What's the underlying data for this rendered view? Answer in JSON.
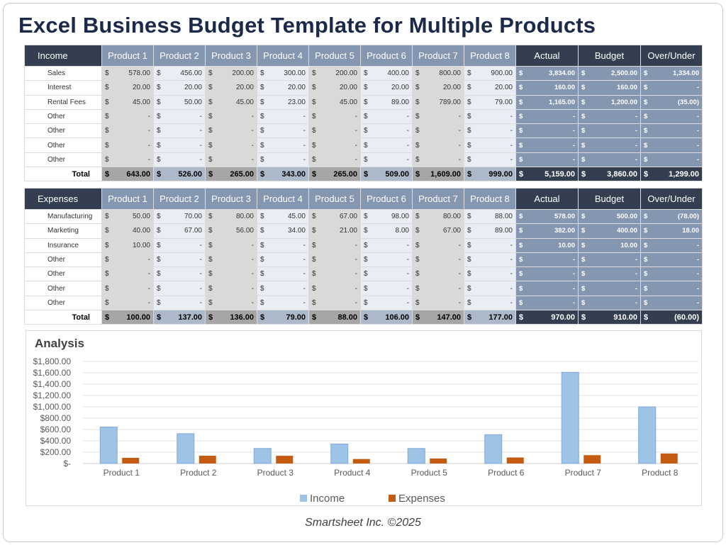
{
  "title": "Excel Business Budget Template for Multiple Products",
  "products": [
    "Product 1",
    "Product 2",
    "Product 3",
    "Product 4",
    "Product 5",
    "Product 6",
    "Product 7",
    "Product 8"
  ],
  "summary_headers": [
    "Actual",
    "Budget",
    "Over/Under"
  ],
  "currency": "$",
  "income": {
    "label": "Income",
    "rows": [
      {
        "label": "Sales",
        "values": [
          "578.00",
          "456.00",
          "200.00",
          "300.00",
          "200.00",
          "400.00",
          "800.00",
          "900.00"
        ],
        "summary": [
          "3,834.00",
          "2,500.00",
          "1,334.00"
        ]
      },
      {
        "label": "Interest",
        "values": [
          "20.00",
          "20.00",
          "20.00",
          "20.00",
          "20.00",
          "20.00",
          "20.00",
          "20.00"
        ],
        "summary": [
          "160.00",
          "160.00",
          "-"
        ]
      },
      {
        "label": "Rental Fees",
        "values": [
          "45.00",
          "50.00",
          "45.00",
          "23.00",
          "45.00",
          "89.00",
          "789.00",
          "79.00"
        ],
        "summary": [
          "1,165.00",
          "1,200.00",
          "(35.00)"
        ]
      },
      {
        "label": "Other",
        "values": [
          "-",
          "-",
          "-",
          "-",
          "-",
          "-",
          "-",
          "-"
        ],
        "summary": [
          "-",
          "-",
          "-"
        ]
      },
      {
        "label": "Other",
        "values": [
          "-",
          "-",
          "-",
          "-",
          "-",
          "-",
          "-",
          "-"
        ],
        "summary": [
          "-",
          "-",
          "-"
        ]
      },
      {
        "label": "Other",
        "values": [
          "-",
          "-",
          "-",
          "-",
          "-",
          "-",
          "-",
          "-"
        ],
        "summary": [
          "-",
          "-",
          "-"
        ]
      },
      {
        "label": "Other",
        "values": [
          "-",
          "-",
          "-",
          "-",
          "-",
          "-",
          "-",
          "-"
        ],
        "summary": [
          "-",
          "-",
          "-"
        ]
      }
    ],
    "total": {
      "label": "Total",
      "values": [
        "643.00",
        "526.00",
        "265.00",
        "343.00",
        "265.00",
        "509.00",
        "1,609.00",
        "999.00"
      ],
      "summary": [
        "5,159.00",
        "3,860.00",
        "1,299.00"
      ]
    }
  },
  "expenses": {
    "label": "Expenses",
    "rows": [
      {
        "label": "Manufacturing",
        "values": [
          "50.00",
          "70.00",
          "80.00",
          "45.00",
          "67.00",
          "98.00",
          "80.00",
          "88.00"
        ],
        "summary": [
          "578.00",
          "500.00",
          "(78.00)"
        ]
      },
      {
        "label": "Marketing",
        "values": [
          "40.00",
          "67.00",
          "56.00",
          "34.00",
          "21.00",
          "8.00",
          "67.00",
          "89.00"
        ],
        "summary": [
          "382.00",
          "400.00",
          "18.00"
        ]
      },
      {
        "label": "Insurance",
        "values": [
          "10.00",
          "-",
          "-",
          "-",
          "-",
          "-",
          "-",
          "-"
        ],
        "summary": [
          "10.00",
          "10.00",
          "-"
        ]
      },
      {
        "label": "Other",
        "values": [
          "-",
          "-",
          "-",
          "-",
          "-",
          "-",
          "-",
          "-"
        ],
        "summary": [
          "-",
          "-",
          "-"
        ]
      },
      {
        "label": "Other",
        "values": [
          "-",
          "-",
          "-",
          "-",
          "-",
          "-",
          "-",
          "-"
        ],
        "summary": [
          "-",
          "-",
          "-"
        ]
      },
      {
        "label": "Other",
        "values": [
          "-",
          "-",
          "-",
          "-",
          "-",
          "-",
          "-",
          "-"
        ],
        "summary": [
          "-",
          "-",
          "-"
        ]
      },
      {
        "label": "Other",
        "values": [
          "-",
          "-",
          "-",
          "-",
          "-",
          "-",
          "-",
          "-"
        ],
        "summary": [
          "-",
          "-",
          "-"
        ]
      }
    ],
    "total": {
      "label": "Total",
      "values": [
        "100.00",
        "137.00",
        "136.00",
        "79.00",
        "88.00",
        "106.00",
        "147.00",
        "177.00"
      ],
      "summary": [
        "970.00",
        "910.00",
        "(60.00)"
      ]
    }
  },
  "chart_data": {
    "type": "bar",
    "title": "Analysis",
    "categories": [
      "Product 1",
      "Product 2",
      "Product 3",
      "Product 4",
      "Product 5",
      "Product 6",
      "Product 7",
      "Product 8"
    ],
    "series": [
      {
        "name": "Income",
        "values": [
          643,
          526,
          265,
          343,
          265,
          509,
          1609,
          999
        ],
        "color": "#9dc3e6"
      },
      {
        "name": "Expenses",
        "values": [
          100,
          137,
          136,
          79,
          88,
          106,
          147,
          177
        ],
        "color": "#c55a11"
      }
    ],
    "ylim": [
      0,
      1800
    ],
    "yticks": [
      "$-",
      "$200.00",
      "$400.00",
      "$600.00",
      "$800.00",
      "$1,000.00",
      "$1,200.00",
      "$1,400.00",
      "$1,600.00",
      "$1,800.00"
    ],
    "grid": true,
    "legend": "bottom"
  },
  "footer": "Smartsheet Inc. ©2025"
}
